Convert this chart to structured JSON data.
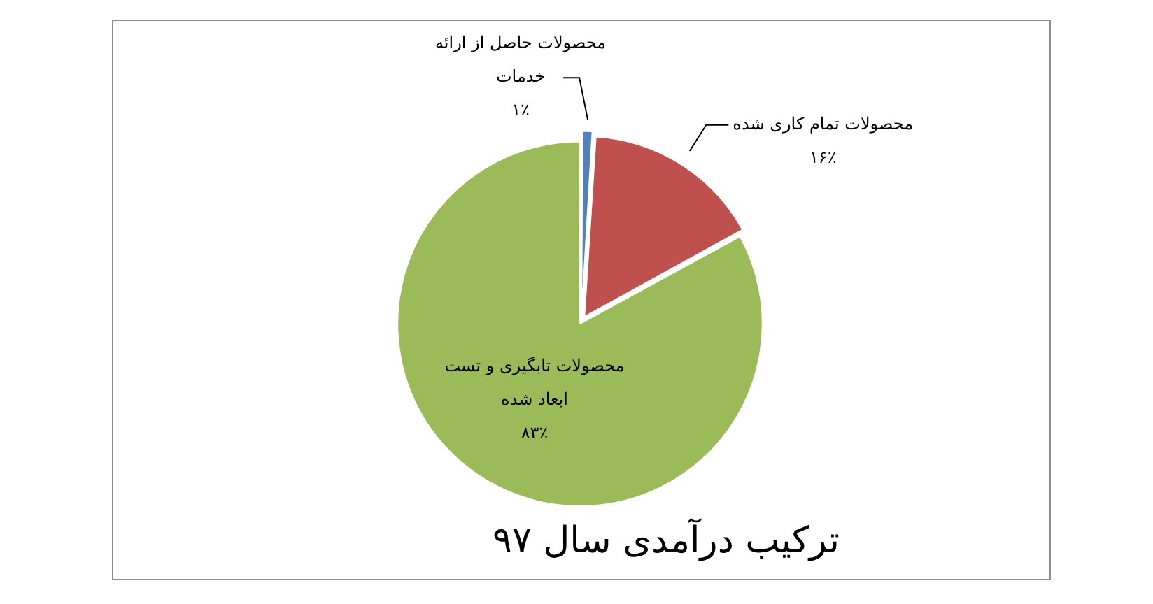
{
  "chart_data": {
    "type": "pie",
    "title": "ترکیب درآمدی سال ۹۷",
    "categories": [
      "محصولات حاصل از ارائه خدمات",
      "محصولات تمام کاری شده",
      "محصولات تابگیری و تست ابعاد شده"
    ],
    "values": [
      1,
      16,
      83
    ],
    "colors": [
      "#4f81bd",
      "#c0504d",
      "#9bbb59"
    ],
    "value_labels": [
      "۱٪",
      "۱۶٪",
      "۸۳٪"
    ],
    "legend": false
  }
}
